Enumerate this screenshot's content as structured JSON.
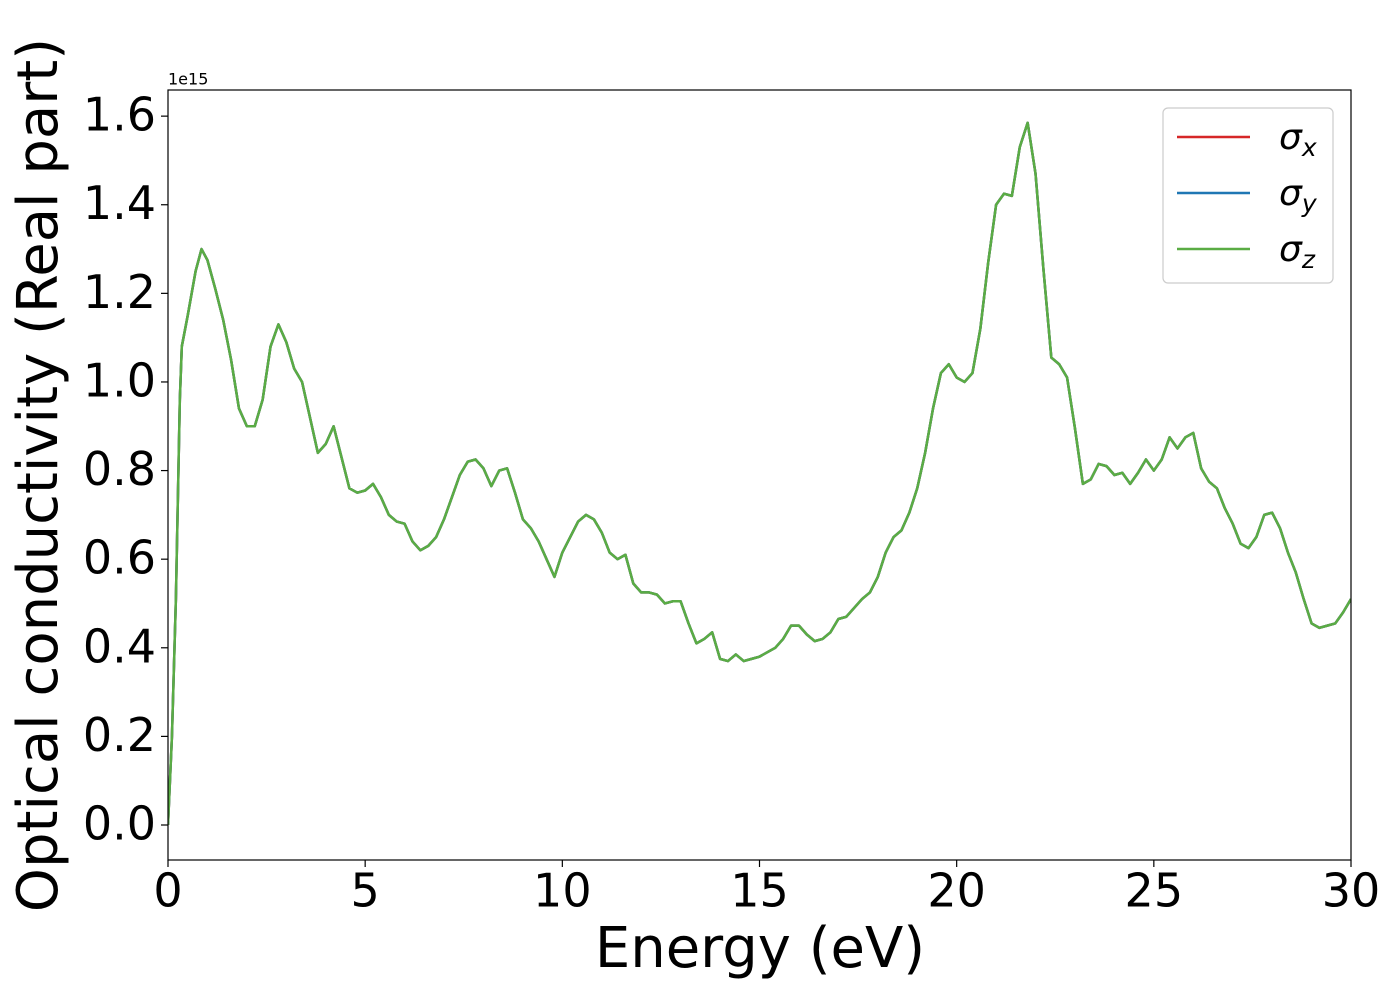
{
  "chart_data": {
    "type": "line",
    "xlabel": "Energy (eV)",
    "ylabel": "Optical conductivity (Real part)",
    "y_offset_label": "1e15",
    "xlim": [
      0,
      30
    ],
    "xticks": [
      0,
      5,
      10,
      15,
      20,
      25,
      30
    ],
    "ylim": [
      -0.079,
      1.659
    ],
    "yticks": [
      {
        "value": 0,
        "label": "0.0"
      },
      {
        "value": 0.2,
        "label": "0.2"
      },
      {
        "value": 0.4,
        "label": "0.4"
      },
      {
        "value": 0.6,
        "label": "0.6"
      },
      {
        "value": 0.8,
        "label": "0.8"
      },
      {
        "value": 1.0,
        "label": "1.0"
      },
      {
        "value": 1.2,
        "label": "1.2"
      },
      {
        "value": 1.4,
        "label": "1.4"
      },
      {
        "value": 1.6,
        "label": "1.6"
      }
    ],
    "grid": false,
    "legend": "upper right",
    "x": [
      0,
      0.1,
      0.2,
      0.3,
      0.35,
      0.5,
      0.7,
      0.85,
      1.0,
      1.2,
      1.4,
      1.6,
      1.8,
      2.0,
      2.2,
      2.4,
      2.6,
      2.8,
      3.0,
      3.2,
      3.4,
      3.6,
      3.8,
      4.0,
      4.2,
      4.4,
      4.6,
      4.8,
      5.0,
      5.2,
      5.4,
      5.6,
      5.8,
      6.0,
      6.2,
      6.4,
      6.6,
      6.8,
      7.0,
      7.2,
      7.4,
      7.6,
      7.8,
      8.0,
      8.2,
      8.4,
      8.6,
      8.8,
      9.0,
      9.2,
      9.4,
      9.6,
      9.8,
      10.0,
      10.2,
      10.4,
      10.6,
      10.8,
      11.0,
      11.2,
      11.4,
      11.6,
      11.8,
      12.0,
      12.2,
      12.4,
      12.6,
      12.8,
      13.0,
      13.2,
      13.4,
      13.6,
      13.8,
      14.0,
      14.2,
      14.4,
      14.6,
      14.8,
      15.0,
      15.2,
      15.4,
      15.6,
      15.8,
      16.0,
      16.2,
      16.4,
      16.6,
      16.8,
      17.0,
      17.2,
      17.4,
      17.6,
      17.8,
      18.0,
      18.2,
      18.4,
      18.6,
      18.8,
      19.0,
      19.2,
      19.4,
      19.6,
      19.8,
      20.0,
      20.2,
      20.4,
      20.6,
      20.8,
      21.0,
      21.2,
      21.4,
      21.6,
      21.8,
      22.0,
      22.2,
      22.4,
      22.6,
      22.8,
      23.0,
      23.2,
      23.4,
      23.6,
      23.8,
      24.0,
      24.2,
      24.4,
      24.6,
      24.8,
      25.0,
      25.2,
      25.4,
      25.6,
      25.8,
      26.0,
      26.2,
      26.4,
      26.6,
      26.8,
      27.0,
      27.2,
      27.4,
      27.6,
      27.8,
      28.0,
      28.2,
      28.4,
      28.6,
      28.8,
      29.0,
      29.2,
      29.4,
      29.6,
      29.8,
      30.0
    ],
    "series": [
      {
        "name": "σx",
        "color": "#d62728",
        "values": [
          0,
          0.2,
          0.51,
          0.96,
          1.08,
          1.15,
          1.25,
          1.3,
          1.275,
          1.21,
          1.14,
          1.05,
          0.94,
          0.9,
          0.9,
          0.96,
          1.08,
          1.13,
          1.09,
          1.03,
          1.0,
          0.92,
          0.84,
          0.86,
          0.9,
          0.83,
          0.76,
          0.75,
          0.755,
          0.77,
          0.74,
          0.7,
          0.685,
          0.68,
          0.64,
          0.62,
          0.63,
          0.65,
          0.69,
          0.74,
          0.79,
          0.82,
          0.825,
          0.805,
          0.765,
          0.8,
          0.805,
          0.75,
          0.69,
          0.67,
          0.64,
          0.6,
          0.56,
          0.615,
          0.65,
          0.685,
          0.7,
          0.69,
          0.66,
          0.615,
          0.6,
          0.61,
          0.545,
          0.525,
          0.525,
          0.52,
          0.5,
          0.505,
          0.505,
          0.455,
          0.41,
          0.42,
          0.435,
          0.375,
          0.37,
          0.385,
          0.37,
          0.375,
          0.38,
          0.39,
          0.4,
          0.42,
          0.45,
          0.45,
          0.43,
          0.415,
          0.42,
          0.435,
          0.465,
          0.47,
          0.49,
          0.51,
          0.525,
          0.56,
          0.615,
          0.65,
          0.665,
          0.705,
          0.76,
          0.84,
          0.94,
          1.02,
          1.04,
          1.01,
          1.0,
          1.02,
          1.12,
          1.27,
          1.4,
          1.425,
          1.42,
          1.53,
          1.585,
          1.47,
          1.255,
          1.055,
          1.04,
          1.01,
          0.895,
          0.77,
          0.78,
          0.815,
          0.81,
          0.79,
          0.795,
          0.77,
          0.795,
          0.825,
          0.8,
          0.825,
          0.875,
          0.85,
          0.875,
          0.885,
          0.805,
          0.775,
          0.76,
          0.715,
          0.68,
          0.635,
          0.625,
          0.65,
          0.7,
          0.705,
          0.67,
          0.615,
          0.57,
          0.51,
          0.455,
          0.445,
          0.45,
          0.455,
          0.48,
          0.51
        ]
      },
      {
        "name": "σy",
        "color": "#1f77b4",
        "values": [
          0,
          0.2,
          0.51,
          0.96,
          1.08,
          1.15,
          1.25,
          1.3,
          1.275,
          1.21,
          1.14,
          1.05,
          0.94,
          0.9,
          0.9,
          0.96,
          1.08,
          1.13,
          1.09,
          1.03,
          1.0,
          0.92,
          0.84,
          0.86,
          0.9,
          0.83,
          0.76,
          0.75,
          0.755,
          0.77,
          0.74,
          0.7,
          0.685,
          0.68,
          0.64,
          0.62,
          0.63,
          0.65,
          0.69,
          0.74,
          0.79,
          0.82,
          0.825,
          0.805,
          0.765,
          0.8,
          0.805,
          0.75,
          0.69,
          0.67,
          0.64,
          0.6,
          0.56,
          0.615,
          0.65,
          0.685,
          0.7,
          0.69,
          0.66,
          0.615,
          0.6,
          0.61,
          0.545,
          0.525,
          0.525,
          0.52,
          0.5,
          0.505,
          0.505,
          0.455,
          0.41,
          0.42,
          0.435,
          0.375,
          0.37,
          0.385,
          0.37,
          0.375,
          0.38,
          0.39,
          0.4,
          0.42,
          0.45,
          0.45,
          0.43,
          0.415,
          0.42,
          0.435,
          0.465,
          0.47,
          0.49,
          0.51,
          0.525,
          0.56,
          0.615,
          0.65,
          0.665,
          0.705,
          0.76,
          0.84,
          0.94,
          1.02,
          1.04,
          1.01,
          1.0,
          1.02,
          1.12,
          1.27,
          1.4,
          1.425,
          1.42,
          1.53,
          1.585,
          1.47,
          1.255,
          1.055,
          1.04,
          1.01,
          0.895,
          0.77,
          0.78,
          0.815,
          0.81,
          0.79,
          0.795,
          0.77,
          0.795,
          0.825,
          0.8,
          0.825,
          0.875,
          0.85,
          0.875,
          0.885,
          0.805,
          0.775,
          0.76,
          0.715,
          0.68,
          0.635,
          0.625,
          0.65,
          0.7,
          0.705,
          0.67,
          0.615,
          0.57,
          0.51,
          0.455,
          0.445,
          0.45,
          0.455,
          0.48,
          0.51
        ]
      },
      {
        "name": "σz",
        "color": "#5aac44",
        "values": [
          0,
          0.2,
          0.51,
          0.96,
          1.08,
          1.15,
          1.25,
          1.3,
          1.275,
          1.21,
          1.14,
          1.05,
          0.94,
          0.9,
          0.9,
          0.96,
          1.08,
          1.13,
          1.09,
          1.03,
          1.0,
          0.92,
          0.84,
          0.86,
          0.9,
          0.83,
          0.76,
          0.75,
          0.755,
          0.77,
          0.74,
          0.7,
          0.685,
          0.68,
          0.64,
          0.62,
          0.63,
          0.65,
          0.69,
          0.74,
          0.79,
          0.82,
          0.825,
          0.805,
          0.765,
          0.8,
          0.805,
          0.75,
          0.69,
          0.67,
          0.64,
          0.6,
          0.56,
          0.615,
          0.65,
          0.685,
          0.7,
          0.69,
          0.66,
          0.615,
          0.6,
          0.61,
          0.545,
          0.525,
          0.525,
          0.52,
          0.5,
          0.505,
          0.505,
          0.455,
          0.41,
          0.42,
          0.435,
          0.375,
          0.37,
          0.385,
          0.37,
          0.375,
          0.38,
          0.39,
          0.4,
          0.42,
          0.45,
          0.45,
          0.43,
          0.415,
          0.42,
          0.435,
          0.465,
          0.47,
          0.49,
          0.51,
          0.525,
          0.56,
          0.615,
          0.65,
          0.665,
          0.705,
          0.76,
          0.84,
          0.94,
          1.02,
          1.04,
          1.01,
          1.0,
          1.02,
          1.12,
          1.27,
          1.4,
          1.425,
          1.42,
          1.53,
          1.585,
          1.47,
          1.255,
          1.055,
          1.04,
          1.01,
          0.895,
          0.77,
          0.78,
          0.815,
          0.81,
          0.79,
          0.795,
          0.77,
          0.795,
          0.825,
          0.8,
          0.825,
          0.875,
          0.85,
          0.875,
          0.885,
          0.805,
          0.775,
          0.76,
          0.715,
          0.68,
          0.635,
          0.625,
          0.65,
          0.7,
          0.705,
          0.67,
          0.615,
          0.57,
          0.51,
          0.455,
          0.445,
          0.45,
          0.455,
          0.48,
          0.51
        ]
      }
    ]
  }
}
